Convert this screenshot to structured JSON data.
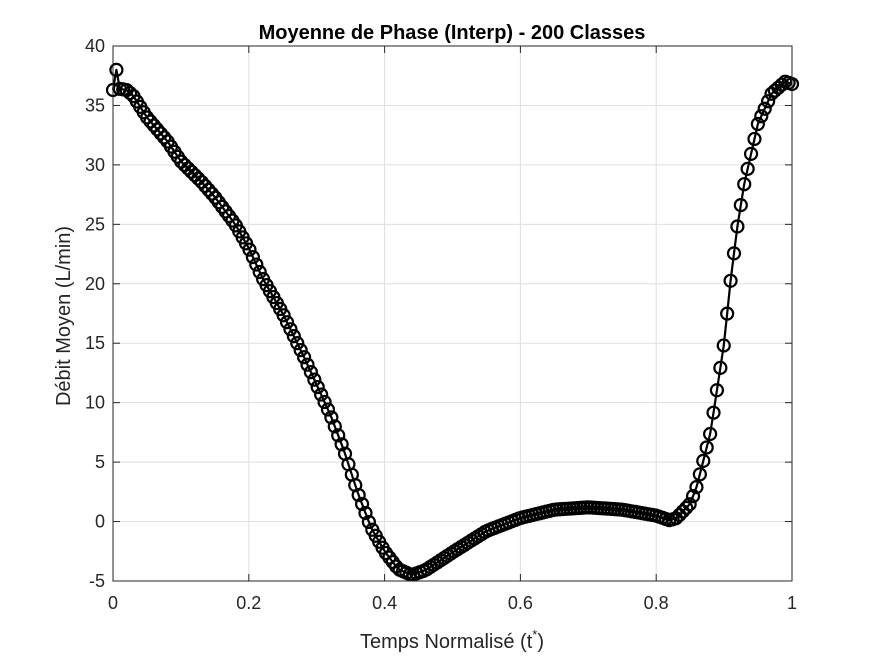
{
  "chart_data": {
    "type": "line",
    "title": "Moyenne de Phase (Interp) - 200 Classes",
    "xlabel": {
      "main": "Temps Normalisé (t",
      "sup": "*",
      "close": ")"
    },
    "ylabel": "Débit Moyen (L/min)",
    "xlim": [
      0,
      1
    ],
    "ylim": [
      -5,
      40
    ],
    "xticks": [
      0,
      0.2,
      0.4,
      0.6,
      0.8,
      1
    ],
    "xtick_labels": [
      "0",
      "0.2",
      "0.4",
      "0.6",
      "0.8",
      "1"
    ],
    "yticks": [
      -5,
      0,
      5,
      10,
      15,
      20,
      25,
      30,
      35,
      40
    ],
    "ytick_labels": [
      "-5",
      "0",
      "5",
      "10",
      "15",
      "20",
      "25",
      "30",
      "35",
      "40"
    ],
    "grid": true,
    "marker": "circle",
    "line_color": "#000000",
    "series": [
      {
        "keypoints": [
          [
            0.0,
            36.3
          ],
          [
            0.005,
            38.0
          ],
          [
            0.01,
            36.4
          ],
          [
            0.02,
            36.3
          ],
          [
            0.03,
            35.8
          ],
          [
            0.05,
            34.0
          ],
          [
            0.08,
            32.0
          ],
          [
            0.1,
            30.3
          ],
          [
            0.13,
            28.6
          ],
          [
            0.15,
            27.3
          ],
          [
            0.18,
            25.0
          ],
          [
            0.2,
            23.0
          ],
          [
            0.22,
            20.5
          ],
          [
            0.25,
            17.5
          ],
          [
            0.28,
            14.0
          ],
          [
            0.3,
            11.5
          ],
          [
            0.32,
            9.0
          ],
          [
            0.34,
            6.0
          ],
          [
            0.36,
            2.5
          ],
          [
            0.38,
            -0.5
          ],
          [
            0.4,
            -2.5
          ],
          [
            0.42,
            -4.0
          ],
          [
            0.44,
            -4.5
          ],
          [
            0.46,
            -4.1
          ],
          [
            0.5,
            -2.6
          ],
          [
            0.55,
            -0.8
          ],
          [
            0.6,
            0.3
          ],
          [
            0.65,
            1.0
          ],
          [
            0.7,
            1.2
          ],
          [
            0.75,
            1.0
          ],
          [
            0.8,
            0.5
          ],
          [
            0.82,
            0.1
          ],
          [
            0.83,
            0.3
          ],
          [
            0.85,
            1.5
          ],
          [
            0.86,
            3.0
          ],
          [
            0.88,
            7.5
          ],
          [
            0.9,
            15.0
          ],
          [
            0.91,
            20.5
          ],
          [
            0.92,
            25.0
          ],
          [
            0.93,
            28.5
          ],
          [
            0.95,
            33.5
          ],
          [
            0.97,
            36.0
          ],
          [
            0.99,
            37.0
          ],
          [
            1.0,
            36.8
          ]
        ]
      }
    ]
  }
}
